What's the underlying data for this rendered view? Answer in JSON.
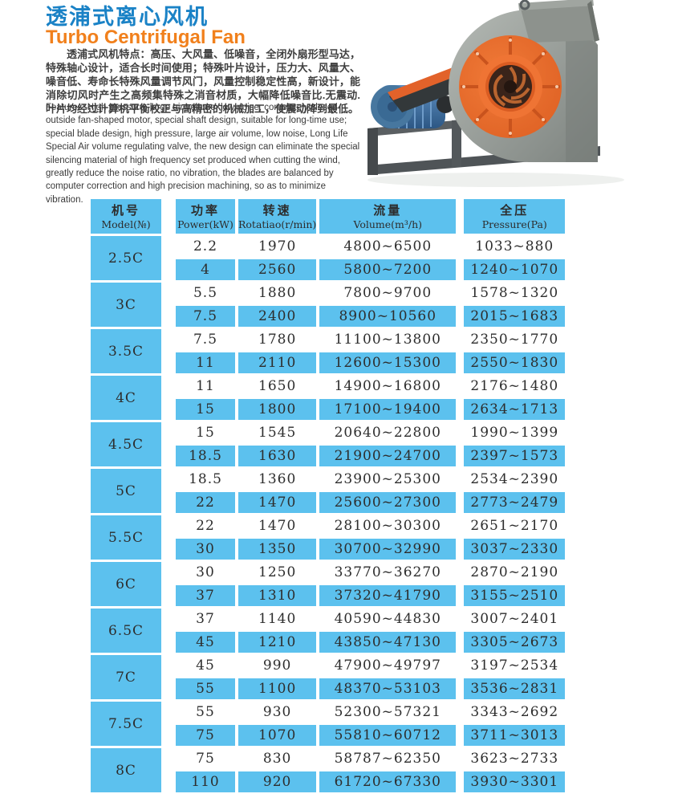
{
  "header": {
    "title_zh": "透浦式离心风机",
    "title_en": "Turbo Centrifugal Fan",
    "intro_zh": "透浦式风机特点：高压、大风量、低噪音，全闭外扇形型马达，特殊轴心设计，适合长时间使用；特殊叶片设计，压力大、风量大、噪音低、寿命长特殊风量调节风门，风量控制稳定性高，新设计，能消除切风时产生之高频集特殊之消音材质，大幅降低噪音比.无震动.叶片均经过计算机平衡校正与高精密的机械加工，使震动降到最低。",
    "features_en": "Features: High pressure, large air volume, low noise, completely closed outside fan-shaped motor, special shaft design, suitable for long-time use; special blade design, high pressure, large air volume, low noise, Long Life Special Air volume regulating valve, the new design can eliminate the special silencing material of high frequency set produced when cutting the wind, greatly reduce the noise ratio, no vibration, the blades are balanced by computer correction and high precision machining, so as to minimize vibration."
  },
  "product_image": {
    "name": "centrifugal-fan-photo"
  },
  "colors": {
    "title_blue": "#1a82c6",
    "title_orange": "#f1801c",
    "cell_blue": "#5cc1ee",
    "fan_orange": "#e8692c",
    "motor_blue": "#3c6da3"
  },
  "table": {
    "headers": [
      {
        "zh": "机号",
        "en": "Model(№)"
      },
      {
        "zh": "功率",
        "en": "Power(kW)"
      },
      {
        "zh": "转速",
        "en": "Rotatiao(r/min)"
      },
      {
        "zh": "流量",
        "en": "Volume(m³/h)"
      },
      {
        "zh": "全压",
        "en": "Pressure(Pa)"
      }
    ],
    "groups": [
      {
        "model": "2.5C",
        "rows": [
          [
            "2.2",
            "1970",
            "4800~6500",
            "1033~880"
          ],
          [
            "4",
            "2560",
            "5800~7200",
            "1240~1070"
          ]
        ]
      },
      {
        "model": "3C",
        "rows": [
          [
            "5.5",
            "1880",
            "7800~9700",
            "1578~1320"
          ],
          [
            "7.5",
            "2400",
            "8900~10560",
            "2015~1683"
          ]
        ]
      },
      {
        "model": "3.5C",
        "rows": [
          [
            "7.5",
            "1780",
            "11100~13800",
            "2350~1770"
          ],
          [
            "11",
            "2110",
            "12600~15300",
            "2550~1830"
          ]
        ]
      },
      {
        "model": "4C",
        "rows": [
          [
            "11",
            "1650",
            "14900~16800",
            "2176~1480"
          ],
          [
            "15",
            "1800",
            "17100~19400",
            "2634~1713"
          ]
        ]
      },
      {
        "model": "4.5C",
        "rows": [
          [
            "15",
            "1545",
            "20640~22800",
            "1990~1399"
          ],
          [
            "18.5",
            "1630",
            "21900~24700",
            "2397~1573"
          ]
        ]
      },
      {
        "model": "5C",
        "rows": [
          [
            "18.5",
            "1360",
            "23900~25300",
            "2534~2390"
          ],
          [
            "22",
            "1470",
            "25600~27300",
            "2773~2479"
          ]
        ]
      },
      {
        "model": "5.5C",
        "rows": [
          [
            "22",
            "1470",
            "28100~30300",
            "2651~2170"
          ],
          [
            "30",
            "1350",
            "30700~32990",
            "3037~2330"
          ]
        ]
      },
      {
        "model": "6C",
        "rows": [
          [
            "30",
            "1250",
            "33770~36270",
            "2870~2190"
          ],
          [
            "37",
            "1310",
            "37320~41790",
            "3155~2510"
          ]
        ]
      },
      {
        "model": "6.5C",
        "rows": [
          [
            "37",
            "1140",
            "40590~44830",
            "3007~2401"
          ],
          [
            "45",
            "1210",
            "43850~47130",
            "3305~2673"
          ]
        ]
      },
      {
        "model": "7C",
        "rows": [
          [
            "45",
            "990",
            "47900~49797",
            "3197~2534"
          ],
          [
            "55",
            "1100",
            "48370~53103",
            "3536~2831"
          ]
        ]
      },
      {
        "model": "7.5C",
        "rows": [
          [
            "55",
            "930",
            "52300~57321",
            "3343~2692"
          ],
          [
            "75",
            "1070",
            "55810~60712",
            "3711~3013"
          ]
        ]
      },
      {
        "model": "8C",
        "rows": [
          [
            "75",
            "830",
            "58787~62350",
            "3623~2733"
          ],
          [
            "110",
            "920",
            "61720~67330",
            "3930~3301"
          ]
        ]
      }
    ]
  }
}
